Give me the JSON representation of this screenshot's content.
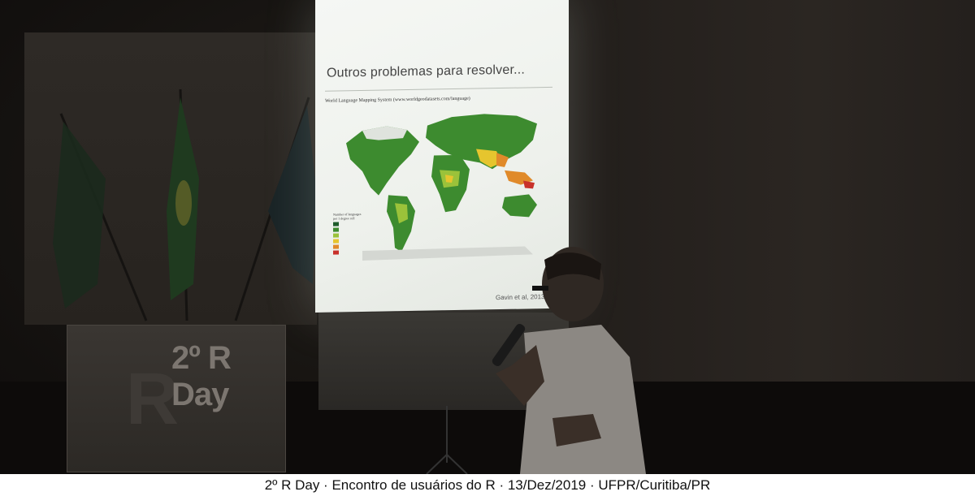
{
  "slide": {
    "title": "Outros problemas para resolver...",
    "map_caption": "World Language Mapping System (www.worldgeodatasets.com/language)",
    "legend_title": "Number of languages per 1 degree cell",
    "legend_colors": [
      "#1d5c2a",
      "#3d8b2f",
      "#9bc23a",
      "#e6c52e",
      "#e08a2a",
      "#c8312a"
    ],
    "credit": "Gavin et al, 2013"
  },
  "banner": {
    "title": "2º R Day"
  },
  "caption": "2º R Day · Encontro de usuários do R · 13/Dez/2019 · UFPR/Curitiba/PR"
}
